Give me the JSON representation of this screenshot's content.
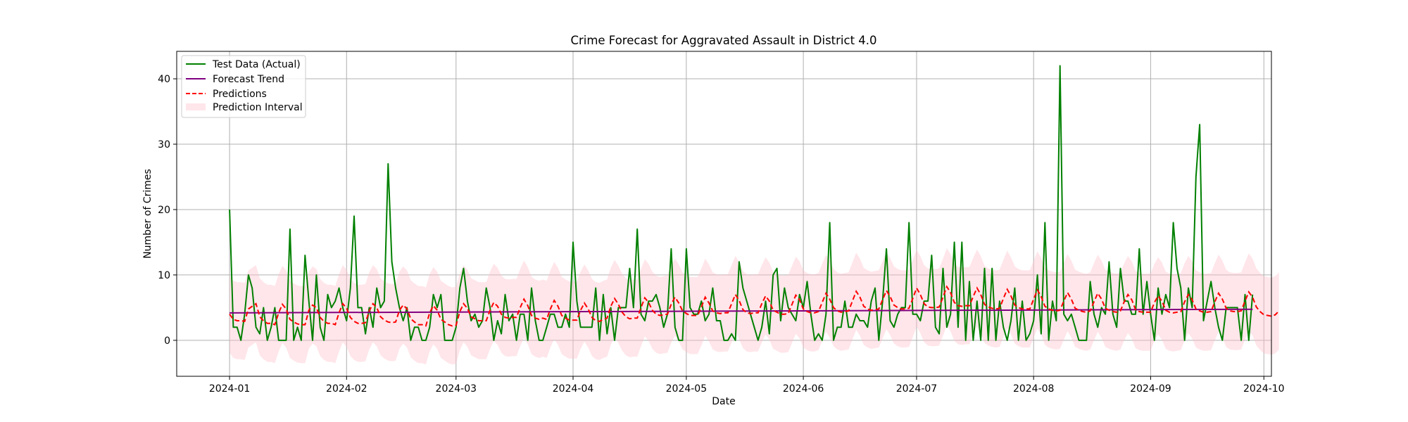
{
  "chart_data": {
    "type": "line",
    "title": "Crime Forecast for Aggravated Assault in District 4.0",
    "xlabel": "Date",
    "ylabel": "Number of Crimes",
    "x_range": [
      "2023-12-18",
      "2024-10-03"
    ],
    "ylim": [
      -5.5,
      44.2
    ],
    "grid": true,
    "legend_position": "top-left",
    "x_ticks": [
      "2024-01",
      "2024-02",
      "2024-03",
      "2024-04",
      "2024-05",
      "2024-06",
      "2024-07",
      "2024-08",
      "2024-09",
      "2024-10"
    ],
    "x_tick_dates": [
      "2024-01-01",
      "2024-02-01",
      "2024-03-01",
      "2024-04-01",
      "2024-05-01",
      "2024-06-01",
      "2024-07-01",
      "2024-08-01",
      "2024-09-01",
      "2024-10-01"
    ],
    "y_ticks": [
      0,
      10,
      20,
      30,
      40
    ],
    "series": [
      {
        "name": "Test Data (Actual)",
        "kind": "line",
        "color": "#008000",
        "start_date": "2024-01-01",
        "values": [
          20,
          2,
          2,
          0,
          4,
          10,
          8,
          2,
          1,
          5,
          0,
          2,
          5,
          0,
          0,
          0,
          17,
          0,
          2,
          0,
          13,
          6,
          0,
          10,
          2,
          0,
          7,
          5,
          6,
          8,
          5,
          3,
          8,
          19,
          5,
          5,
          1,
          5,
          2,
          8,
          5,
          6,
          27,
          12,
          8,
          5,
          3,
          5,
          0,
          2,
          2,
          0,
          0,
          2,
          7,
          5,
          7,
          0,
          0,
          0,
          2,
          8,
          11,
          6,
          3,
          4,
          2,
          3,
          8,
          5,
          0,
          3,
          1,
          7,
          3,
          4,
          0,
          4,
          4,
          0,
          8,
          3,
          0,
          0,
          2,
          4,
          4,
          2,
          2,
          4,
          2,
          15,
          6,
          2,
          2,
          2,
          2,
          8,
          0,
          7,
          1,
          5,
          0,
          5,
          5,
          5,
          11,
          5,
          17,
          4,
          3,
          6,
          6,
          7,
          5,
          2,
          4,
          14,
          2,
          0,
          0,
          14,
          5,
          4,
          4,
          6,
          3,
          4,
          8,
          3,
          3,
          0,
          0,
          1,
          0,
          12,
          8,
          6,
          4,
          2,
          0,
          2,
          6,
          1,
          10,
          11,
          3,
          8,
          5,
          4,
          3,
          7,
          5,
          9,
          4,
          0,
          1,
          0,
          4,
          18,
          0,
          2,
          2,
          6,
          2,
          2,
          4,
          3,
          3,
          2,
          6,
          8,
          0,
          6,
          14,
          3,
          2,
          4,
          5,
          5,
          18,
          4,
          4,
          3,
          6,
          6,
          13,
          2,
          1,
          11,
          2,
          4,
          15,
          2,
          15,
          0,
          9,
          0,
          6,
          0,
          11,
          0,
          11,
          0,
          6,
          2,
          0,
          3,
          8,
          0,
          6,
          0,
          1,
          3,
          10,
          1,
          18,
          0,
          6,
          3,
          42,
          4,
          3,
          4,
          2,
          0,
          0,
          0,
          9,
          4,
          2,
          5,
          4,
          12,
          4,
          2,
          11,
          6,
          6,
          4,
          4,
          14,
          4,
          9,
          4,
          0,
          8,
          4,
          7,
          5,
          18,
          11,
          8,
          0,
          8,
          5,
          25,
          33,
          3,
          6,
          9,
          5,
          2,
          0,
          5,
          5,
          5,
          5,
          0,
          7,
          0,
          7
        ]
      },
      {
        "name": "Forecast Trend",
        "kind": "line",
        "color": "#800080",
        "start_value": 4.2,
        "end_value": 4.75
      },
      {
        "name": "Predictions",
        "kind": "dashed-line",
        "color": "#ff0000",
        "start_date": "2024-01-01",
        "values": [
          4,
          3.2,
          3,
          3,
          2.9,
          4.8,
          5.2,
          5.6,
          3.6,
          3,
          2.6,
          2.6,
          2.4,
          4.2,
          5.5,
          4.8,
          3.2,
          2.8,
          2.5,
          2.4,
          2.4,
          4.6,
          5.4,
          5,
          3.5,
          2.9,
          2.6,
          2.6,
          2.4,
          4.2,
          5.6,
          4.9,
          3.5,
          2.9,
          2.6,
          2.6,
          2.7,
          4.5,
          5.6,
          5,
          3.6,
          3.1,
          2.8,
          2.7,
          2.8,
          4.6,
          5.4,
          4.8,
          3.3,
          2.8,
          2.4,
          2.4,
          2.2,
          4.2,
          5.3,
          4.6,
          3.2,
          2.8,
          2.4,
          2.2,
          2.3,
          4.4,
          5.6,
          4.9,
          3.6,
          3.3,
          3,
          3,
          3,
          4.6,
          5.8,
          5.2,
          4,
          3.5,
          3.4,
          3.5,
          3.5,
          5,
          6.3,
          5.3,
          3.8,
          3.4,
          3.2,
          3.4,
          3.2,
          4.8,
          6.1,
          5.2,
          3.8,
          3.4,
          3.1,
          3.1,
          3.1,
          4.6,
          5.7,
          4.8,
          3.5,
          3,
          2.9,
          3.2,
          3.4,
          5.2,
          6.4,
          5.5,
          4.3,
          3.6,
          3.3,
          3.4,
          3.4,
          5,
          6.5,
          5.8,
          4.6,
          4,
          3.8,
          3.9,
          4,
          5.5,
          6.6,
          5.7,
          4.5,
          4.1,
          3.8,
          3.8,
          3.8,
          5.1,
          6.6,
          5.7,
          4.5,
          4.2,
          4.1,
          4.2,
          4.2,
          5.6,
          7,
          6.1,
          4.7,
          4.2,
          4.1,
          4.2,
          4.2,
          5.6,
          6.8,
          6,
          4.6,
          4.3,
          4,
          4,
          4.1,
          5.5,
          6.9,
          6.2,
          4.8,
          4.4,
          4.2,
          4.2,
          4.4,
          5.8,
          7.2,
          6.3,
          5,
          4.5,
          4.3,
          4.4,
          4.5,
          6,
          7.5,
          6.6,
          5.2,
          4.8,
          4.6,
          4.7,
          4.8,
          6.2,
          7.6,
          6.7,
          5.4,
          5,
          4.8,
          4.8,
          4.9,
          6.4,
          8,
          7,
          5.6,
          5.1,
          5,
          5,
          5.1,
          6.6,
          8.2,
          7.3,
          5.8,
          5.3,
          5.2,
          5.3,
          5.3,
          6.7,
          8,
          7,
          5.5,
          5.1,
          4.9,
          4.8,
          4.9,
          6.4,
          7.8,
          6.8,
          5.4,
          5,
          4.8,
          4.8,
          4.8,
          6.3,
          7.7,
          6.7,
          5.2,
          4.8,
          4.6,
          4.5,
          4.6,
          6,
          7.3,
          6.3,
          4.9,
          4.6,
          4.4,
          4.3,
          4.5,
          5.9,
          7.2,
          6.3,
          4.9,
          4.6,
          4.4,
          4.3,
          4.5,
          5.9,
          7,
          6.2,
          4.7,
          4.4,
          4.3,
          4.3,
          4.3,
          5.8,
          6.8,
          6,
          4.6,
          4.3,
          4.2,
          4.3,
          4.4,
          5.9,
          7,
          6.2,
          4.8,
          4.5,
          4.3,
          4.3,
          4.4,
          5.9,
          7.2,
          6.3,
          4.9,
          4.5,
          4.4,
          4.4,
          4.5,
          6,
          7.4,
          6.6,
          5.1,
          4.4,
          3.9,
          3.8,
          3.7,
          3.9,
          4.5
        ]
      },
      {
        "name": "Prediction Interval",
        "kind": "band",
        "color": "#ffc0cb",
        "opacity": 0.4,
        "half_width": 5.9
      }
    ]
  }
}
